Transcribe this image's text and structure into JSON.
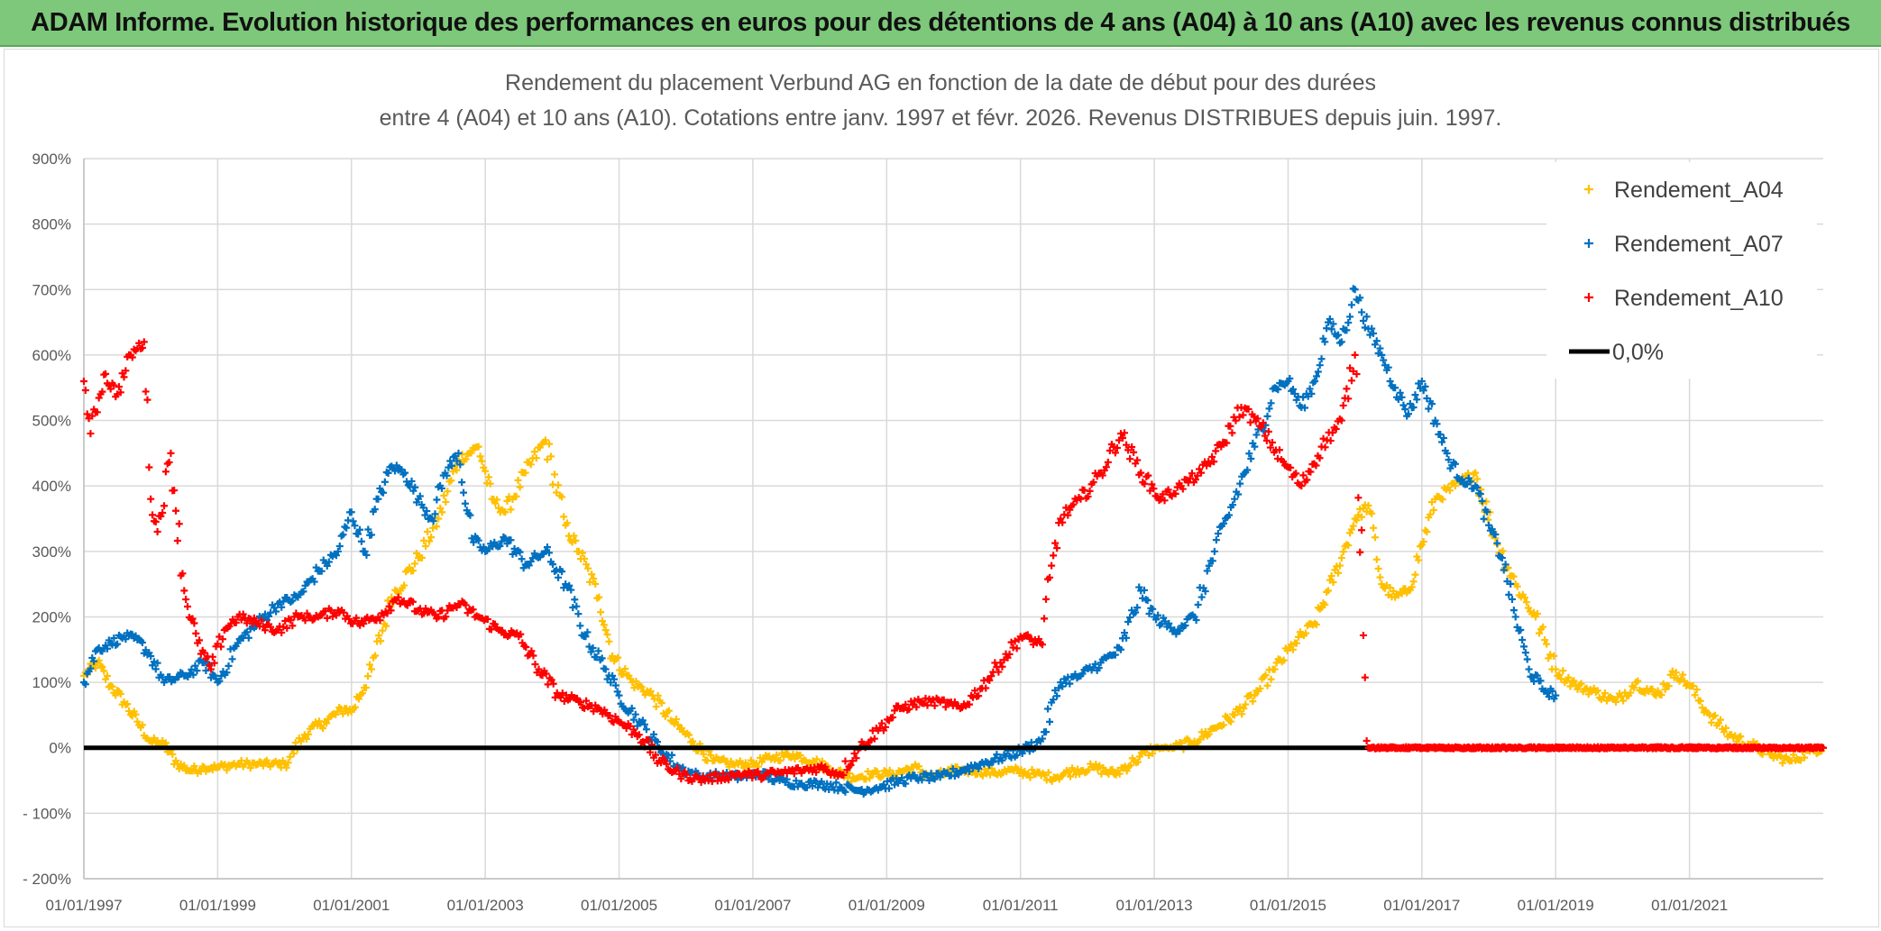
{
  "banner": {
    "text": "ADAM Informe. Evolution historique des performances en euros pour des détentions de 4 ans (A04) à 10 ans (A10) avec les revenus connus distribués"
  },
  "colors": {
    "banner_bg": "#7dc87a",
    "a04": "#ffc000",
    "a07": "#0070c0",
    "a10": "#ff0000",
    "zero": "#000000",
    "grid": "#d9d9d9"
  },
  "chart_data": {
    "type": "scatter",
    "title": [
      "Rendement du placement Verbund AG en fonction de la date de début pour des durées",
      "entre 4 (A04) et 10 ans (A10). Cotations entre janv. 1997 et févr. 2026. Revenus DISTRIBUES depuis juin. 1997."
    ],
    "xlabel": "",
    "ylabel": "",
    "xlim": [
      1997.0,
      2023.0
    ],
    "ylim": [
      -200,
      900
    ],
    "y_ticks": [
      -200,
      -100,
      0,
      100,
      200,
      300,
      400,
      500,
      600,
      700,
      800,
      900
    ],
    "y_tick_labels": [
      "- 200%",
      "- 100%",
      "0%",
      "100%",
      "200%",
      "300%",
      "400%",
      "500%",
      "600%",
      "700%",
      "800%",
      "900%"
    ],
    "x_ticks": [
      1997,
      1999,
      2001,
      2003,
      2005,
      2007,
      2009,
      2011,
      2013,
      2015,
      2017,
      2019,
      2021
    ],
    "x_tick_labels": [
      "01/01/1997",
      "01/01/1999",
      "01/01/2001",
      "01/01/2003",
      "01/01/2005",
      "01/01/2007",
      "01/01/2009",
      "01/01/2011",
      "01/01/2013",
      "01/01/2015",
      "01/01/2017",
      "01/01/2019",
      "01/01/2021"
    ],
    "legend_position": "top-right",
    "legend": [
      {
        "name": "Rendement_A04",
        "color": "#ffc000",
        "marker": "plus"
      },
      {
        "name": "Rendement_A07",
        "color": "#0070c0",
        "marker": "plus"
      },
      {
        "name": "Rendement_A10",
        "color": "#ff0000",
        "marker": "plus"
      },
      {
        "name": "0,0%",
        "color": "#000000",
        "marker": "line"
      }
    ],
    "series": [
      {
        "name": "Rendement_A04",
        "color": "#ffc000",
        "x": [
          1997.0,
          1997.2,
          1997.4,
          1997.6,
          1997.8,
          1998.0,
          1998.2,
          1998.4,
          1998.6,
          1998.8,
          1999.0,
          1999.3,
          1999.6,
          2000.0,
          2000.3,
          2000.6,
          2000.9,
          2001.0,
          2001.3,
          2001.6,
          2002.0,
          2002.3,
          2002.6,
          2002.9,
          2003.1,
          2003.3,
          2003.6,
          2003.9,
          2004.2,
          2004.4,
          2004.7,
          2004.9,
          2005.2,
          2005.5,
          2005.8,
          2006.1,
          2006.4,
          2006.7,
          2007.0,
          2007.3,
          2007.6,
          2007.9,
          2008.2,
          2008.5,
          2008.8,
          2009.1,
          2009.4,
          2009.7,
          2010.0,
          2010.3,
          2010.6,
          2010.9,
          2011.2,
          2011.5,
          2011.8,
          2012.1,
          2012.4,
          2012.7,
          2013.0,
          2013.3,
          2013.6,
          2013.9,
          2014.2,
          2014.5,
          2014.8,
          2015.1,
          2015.4,
          2015.6,
          2015.8,
          2016.0,
          2016.2,
          2016.4,
          2016.6,
          2016.8,
          2017.0,
          2017.2,
          2017.5,
          2017.8,
          2018.1,
          2018.4,
          2018.7,
          2019.0,
          2019.3,
          2019.6,
          2019.9,
          2020.2,
          2020.5,
          2020.8,
          2021.0,
          2021.3,
          2021.6,
          2021.9,
          2022.2,
          2022.5,
          2022.8,
          2023.0
        ],
        "y": [
          110,
          130,
          95,
          70,
          40,
          10,
          5,
          -25,
          -35,
          -30,
          -30,
          -25,
          -25,
          -25,
          20,
          40,
          60,
          55,
          120,
          230,
          290,
          350,
          440,
          460,
          380,
          360,
          420,
          470,
          340,
          300,
          230,
          140,
          100,
          80,
          40,
          10,
          -20,
          -25,
          -25,
          -15,
          -10,
          -20,
          -35,
          -45,
          -40,
          -40,
          -30,
          -45,
          -35,
          -35,
          -38,
          -35,
          -40,
          -45,
          -35,
          -30,
          -40,
          -20,
          0,
          0,
          10,
          30,
          50,
          80,
          120,
          160,
          190,
          240,
          290,
          350,
          370,
          250,
          230,
          240,
          310,
          380,
          400,
          420,
          320,
          250,
          200,
          120,
          95,
          85,
          70,
          100,
          80,
          115,
          95,
          50,
          20,
          5,
          -10,
          -20,
          -5,
          0
        ]
      },
      {
        "name": "Rendement_A07",
        "color": "#0070c0",
        "x": [
          1997.0,
          1997.2,
          1997.4,
          1997.6,
          1997.8,
          1998.0,
          1998.2,
          1998.5,
          1998.8,
          1999.0,
          1999.3,
          1999.6,
          1999.9,
          2000.2,
          2000.5,
          2000.8,
          2001.0,
          2001.2,
          2001.4,
          2001.6,
          2001.8,
          2002.0,
          2002.2,
          2002.4,
          2002.6,
          2002.8,
          2003.0,
          2003.3,
          2003.6,
          2003.9,
          2004.2,
          2004.5,
          2004.8,
          2005.0,
          2005.3,
          2005.6,
          2005.9,
          2006.2,
          2006.5,
          2006.8,
          2007.1,
          2007.4,
          2007.7,
          2008.0,
          2008.3,
          2008.6,
          2008.9,
          2009.2,
          2009.5,
          2009.8,
          2010.1,
          2010.4,
          2010.7,
          2011.0,
          2011.3,
          2011.6,
          2011.9,
          2012.2,
          2012.5,
          2012.8,
          2013.0,
          2013.3,
          2013.6,
          2013.9,
          2014.2,
          2014.5,
          2014.8,
          2015.0,
          2015.2,
          2015.4,
          2015.6,
          2015.8,
          2016.0,
          2016.2,
          2016.4,
          2016.6,
          2016.8,
          2017.0,
          2017.2,
          2017.4,
          2017.6,
          2017.8,
          2018.0,
          2018.2,
          2018.4,
          2018.6,
          2018.8,
          2019.0
        ],
        "y": [
          100,
          150,
          160,
          170,
          165,
          140,
          100,
          110,
          130,
          100,
          160,
          190,
          220,
          230,
          270,
          300,
          360,
          300,
          380,
          430,
          420,
          380,
          350,
          420,
          450,
          320,
          300,
          320,
          280,
          300,
          250,
          170,
          120,
          80,
          40,
          0,
          -30,
          -45,
          -42,
          -45,
          -40,
          -50,
          -55,
          -55,
          -60,
          -65,
          -60,
          -50,
          -45,
          -45,
          -35,
          -25,
          -15,
          -5,
          10,
          100,
          110,
          130,
          150,
          240,
          200,
          180,
          200,
          300,
          380,
          460,
          550,
          560,
          520,
          560,
          650,
          620,
          700,
          640,
          600,
          550,
          510,
          560,
          500,
          440,
          410,
          400,
          340,
          290,
          200,
          120,
          90,
          80
        ]
      },
      {
        "name": "Rendement_A10",
        "color": "#ff0000",
        "x": [
          1997.0,
          1997.1,
          1997.3,
          1997.5,
          1997.7,
          1997.9,
          1998.0,
          1998.1,
          1998.3,
          1998.5,
          1998.7,
          1998.9,
          1999.1,
          1999.3,
          1999.6,
          1999.9,
          2000.2,
          2000.5,
          2000.8,
          2001.1,
          2001.4,
          2001.7,
          2002.0,
          2002.3,
          2002.6,
          2002.9,
          2003.2,
          2003.5,
          2003.8,
          2004.1,
          2004.4,
          2004.7,
          2005.0,
          2005.3,
          2005.6,
          2005.9,
          2006.2,
          2006.5,
          2006.8,
          2007.1,
          2007.4,
          2007.7,
          2008.0,
          2008.3,
          2008.6,
          2008.9,
          2009.2,
          2009.5,
          2009.8,
          2010.1,
          2010.4,
          2010.7,
          2011.0,
          2011.3,
          2011.6,
          2011.9,
          2012.2,
          2012.5,
          2012.8,
          2013.1,
          2013.4,
          2013.7,
          2014.0,
          2014.3,
          2014.6,
          2014.9,
          2015.2,
          2015.5,
          2015.8,
          2016.0,
          2016.2,
          2016.5,
          2017.0,
          2018.0,
          2019.0,
          2020.0,
          2021.0,
          2022.0,
          2023.0
        ],
        "y": [
          560,
          480,
          570,
          540,
          600,
          620,
          380,
          330,
          450,
          240,
          160,
          120,
          180,
          200,
          190,
          180,
          200,
          200,
          210,
          190,
          200,
          230,
          210,
          200,
          220,
          200,
          180,
          170,
          120,
          80,
          70,
          60,
          40,
          20,
          -20,
          -40,
          -48,
          -45,
          -40,
          -42,
          -38,
          -35,
          -30,
          -40,
          0,
          30,
          60,
          70,
          70,
          60,
          90,
          130,
          170,
          160,
          350,
          380,
          420,
          480,
          420,
          380,
          400,
          420,
          460,
          520,
          490,
          440,
          400,
          460,
          500,
          600,
          0,
          0,
          0,
          0,
          0,
          0,
          0,
          0,
          0
        ]
      }
    ],
    "reference_line": {
      "name": "0,0%",
      "y": 0,
      "color": "#000000"
    }
  }
}
